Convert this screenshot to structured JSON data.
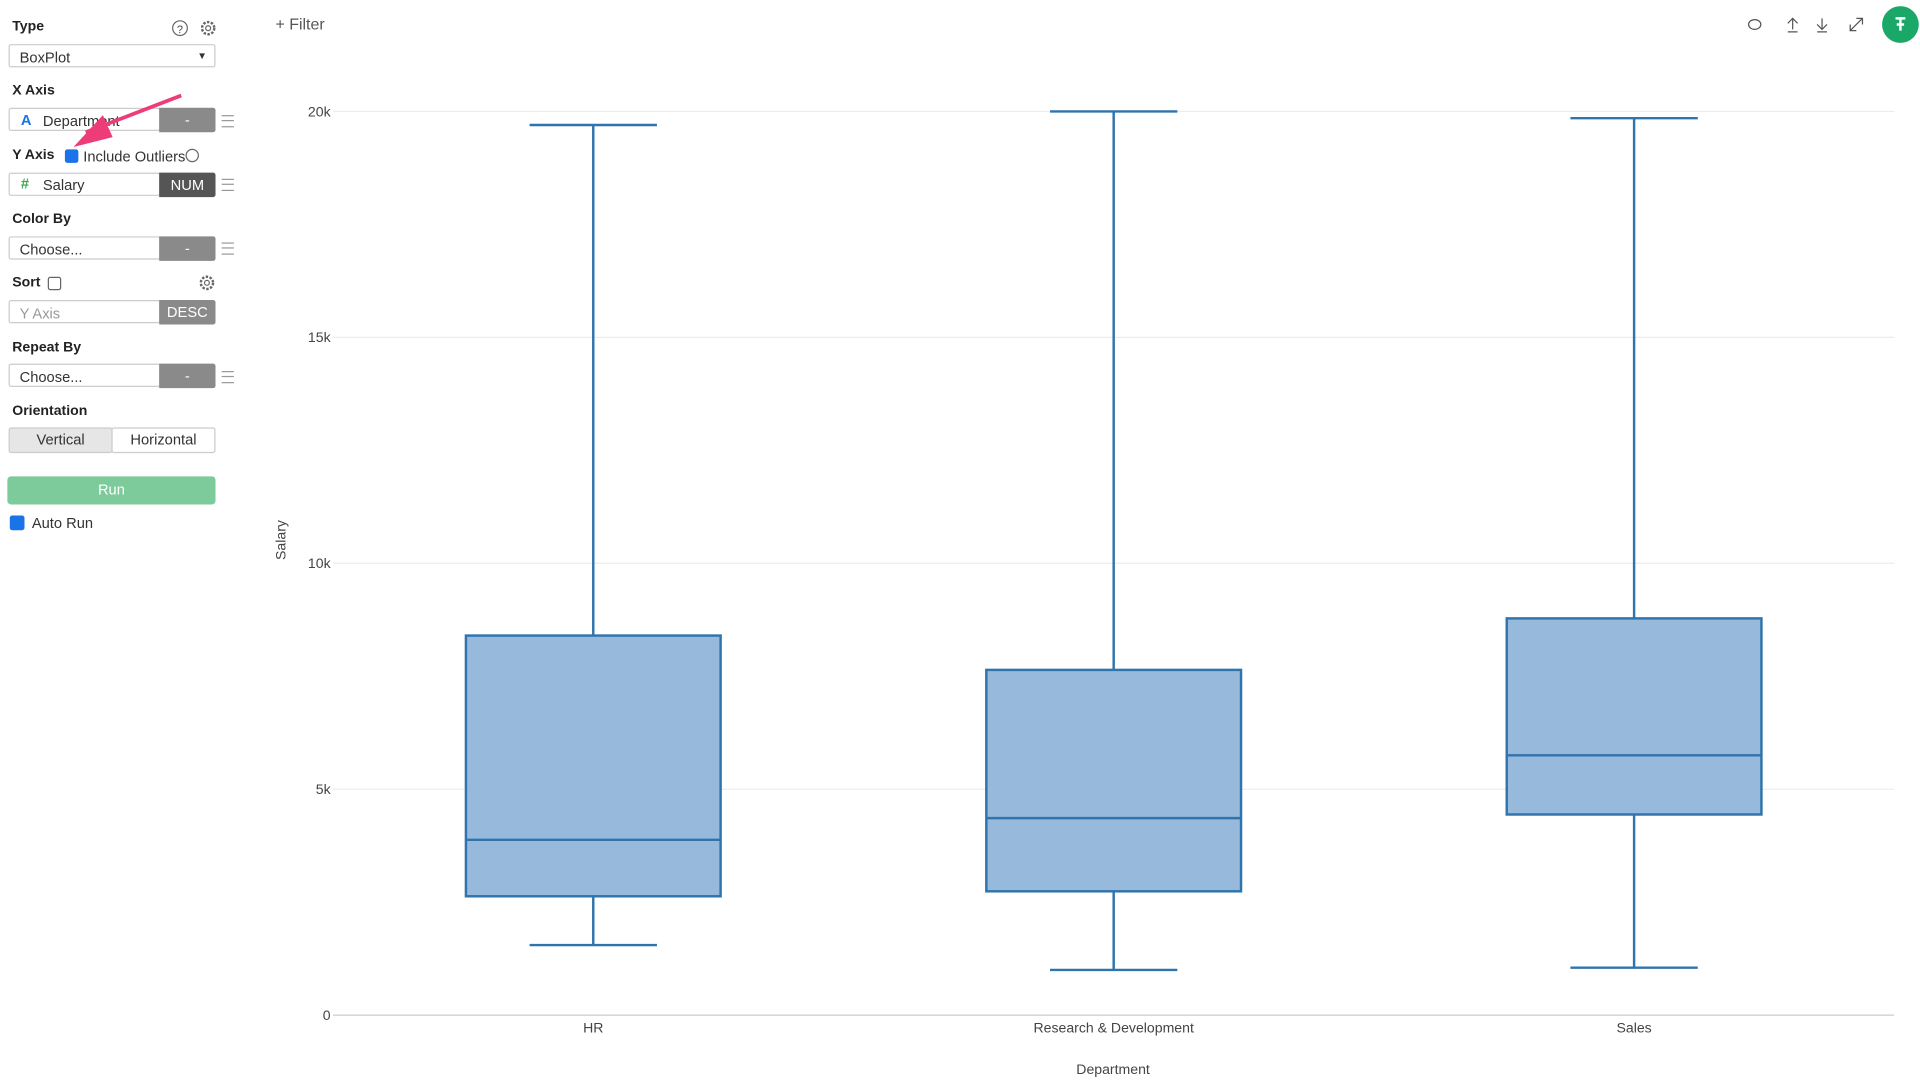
{
  "toolbar": {
    "filter": "Filter"
  },
  "sidebar": {
    "type": {
      "label": "Type",
      "value": "BoxPlot"
    },
    "x_axis": {
      "label": "X Axis",
      "icon": "A",
      "field": "Department",
      "button": "-"
    },
    "y_axis": {
      "label": "Y Axis",
      "option": "Include Outliers",
      "icon": "#",
      "field": "Salary",
      "button": "NUM"
    },
    "color_by": {
      "label": "Color By",
      "field": "Choose...",
      "button": "-"
    },
    "sort": {
      "label": "Sort",
      "field": "Y Axis",
      "button": "DESC"
    },
    "repeat_by": {
      "label": "Repeat By",
      "field": "Choose...",
      "button": "-"
    },
    "orientation": {
      "label": "Orientation",
      "options": [
        "Vertical",
        "Horizontal"
      ]
    },
    "run": "Run",
    "auto_run": "Auto Run"
  },
  "chart_data": {
    "type": "box",
    "x_label": "Department",
    "y_label": "Salary",
    "categories": [
      "HR",
      "Research & Development",
      "Sales"
    ],
    "min": [
      1550,
      1000,
      1050
    ],
    "q1": [
      2630,
      2740,
      4440
    ],
    "median": [
      3880,
      4360,
      5750
    ],
    "q3": [
      8400,
      7640,
      8780
    ],
    "max": [
      19700,
      20000,
      19850
    ],
    "color": "#97b9db",
    "edge_color": "#2f74ad",
    "ylim": [
      0,
      20000
    ],
    "yticks": [
      0,
      {
        "value": 5000,
        "label": "5k"
      },
      {
        "value": 10000,
        "label": "10k"
      },
      {
        "value": 15000,
        "label": "15k"
      },
      {
        "value": 20000,
        "label": "20k"
      }
    ],
    "grid": true
  }
}
